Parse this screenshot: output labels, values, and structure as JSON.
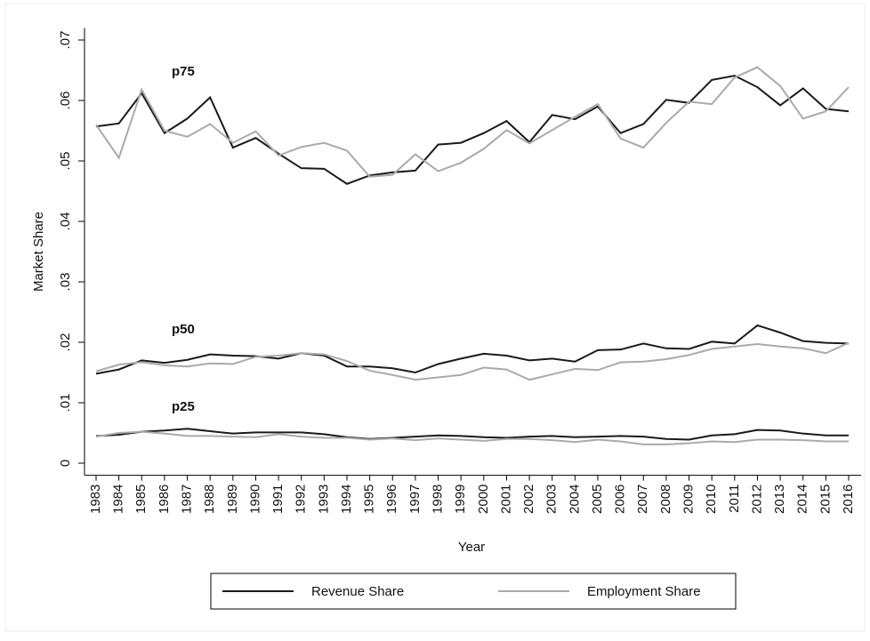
{
  "chart_data": {
    "type": "line",
    "y_label": "Market Share",
    "x_label": "Year",
    "categories": [
      1983,
      1984,
      1985,
      1986,
      1987,
      1988,
      1989,
      1990,
      1991,
      1992,
      1993,
      1994,
      1995,
      1996,
      1997,
      1998,
      1999,
      2000,
      2001,
      2002,
      2003,
      2004,
      2005,
      2006,
      2007,
      2008,
      2009,
      2010,
      2011,
      2012,
      2013,
      2014,
      2015,
      2016
    ],
    "percentiles": [
      "p75",
      "p50",
      "p25"
    ],
    "series": [
      {
        "name": "Revenue Share",
        "color": "#1a1a1a",
        "values": [
          [
            0.0557,
            0.0562,
            0.0612,
            0.0546,
            0.057,
            0.0605,
            0.0522,
            0.0538,
            0.0512,
            0.0488,
            0.0487,
            0.0462,
            0.0476,
            0.0481,
            0.0484,
            0.0527,
            0.053,
            0.0546,
            0.0566,
            0.0531,
            0.0576,
            0.0569,
            0.059,
            0.0546,
            0.0561,
            0.0601,
            0.0596,
            0.0634,
            0.0641,
            0.0622,
            0.0592,
            0.062,
            0.0586,
            0.0582
          ],
          [
            0.0148,
            0.0155,
            0.017,
            0.0166,
            0.0171,
            0.018,
            0.0178,
            0.0177,
            0.0173,
            0.0182,
            0.0178,
            0.016,
            0.016,
            0.0157,
            0.015,
            0.0164,
            0.0173,
            0.0181,
            0.0178,
            0.017,
            0.0173,
            0.0168,
            0.0187,
            0.0188,
            0.0198,
            0.019,
            0.0189,
            0.0201,
            0.0198,
            0.0228,
            0.0216,
            0.0202,
            0.0199,
            0.0198
          ],
          [
            0.0045,
            0.0047,
            0.0052,
            0.0054,
            0.0057,
            0.0053,
            0.0049,
            0.0051,
            0.0051,
            0.0051,
            0.0048,
            0.0043,
            0.004,
            0.0042,
            0.0044,
            0.0046,
            0.0045,
            0.0043,
            0.0042,
            0.0044,
            0.0045,
            0.0043,
            0.0044,
            0.0045,
            0.0044,
            0.004,
            0.0039,
            0.0046,
            0.0048,
            0.0055,
            0.0054,
            0.0049,
            0.0046,
            0.0046
          ]
        ]
      },
      {
        "name": "Employment Share",
        "color": "#aaaaaa",
        "values": [
          [
            0.056,
            0.0505,
            0.0618,
            0.055,
            0.054,
            0.0561,
            0.053,
            0.0549,
            0.0509,
            0.0523,
            0.053,
            0.0517,
            0.0474,
            0.0477,
            0.0511,
            0.0483,
            0.0497,
            0.052,
            0.0551,
            0.0529,
            0.0551,
            0.0573,
            0.0594,
            0.0537,
            0.0522,
            0.0563,
            0.0598,
            0.0594,
            0.0638,
            0.0655,
            0.0624,
            0.057,
            0.0582,
            0.0622
          ],
          [
            0.0152,
            0.0163,
            0.0167,
            0.0162,
            0.016,
            0.0165,
            0.0164,
            0.0176,
            0.0178,
            0.0182,
            0.018,
            0.0169,
            0.0153,
            0.0146,
            0.0138,
            0.0142,
            0.0146,
            0.0158,
            0.0155,
            0.0138,
            0.0147,
            0.0156,
            0.0154,
            0.0167,
            0.0168,
            0.0172,
            0.0179,
            0.0189,
            0.0193,
            0.0197,
            0.0193,
            0.019,
            0.0182,
            0.0199
          ],
          [
            0.0044,
            0.005,
            0.0052,
            0.0049,
            0.0045,
            0.0045,
            0.0044,
            0.0043,
            0.0048,
            0.0044,
            0.0042,
            0.0042,
            0.0039,
            0.0041,
            0.0038,
            0.0041,
            0.0039,
            0.0037,
            0.004,
            0.004,
            0.0038,
            0.0035,
            0.0039,
            0.0036,
            0.0031,
            0.0031,
            0.0033,
            0.0036,
            0.0035,
            0.0039,
            0.0039,
            0.0038,
            0.0036,
            0.0036
          ]
        ]
      }
    ],
    "ylim": [
      -0.002,
      0.072
    ],
    "yticks": [
      0,
      {
        "value": 0.01,
        "label": ".01"
      },
      {
        "value": 0.02,
        "label": ".02"
      },
      {
        "value": 0.03,
        "label": ".03"
      },
      {
        "value": 0.04,
        "label": ".04"
      },
      {
        "value": 0.05,
        "label": ".05"
      },
      {
        "value": 0.06,
        "label": ".06"
      },
      {
        "value": 0.07,
        "label": ".07"
      }
    ],
    "grid": false
  }
}
